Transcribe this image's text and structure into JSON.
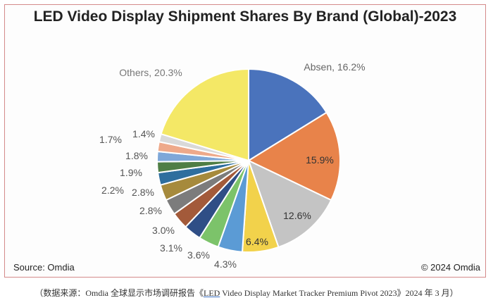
{
  "chart_data": {
    "type": "pie",
    "title": "LED Video Display Shipment Shares By Brand (Global)-2023",
    "slices": [
      {
        "label": "Absen, 16.2%",
        "value": 16.2,
        "color": "#4a73bc"
      },
      {
        "label": "15.9%",
        "value": 15.9,
        "color": "#e8834a"
      },
      {
        "label": "12.6%",
        "value": 12.6,
        "color": "#c4c4c4"
      },
      {
        "label": "6.4%",
        "value": 6.4,
        "color": "#f2d24b"
      },
      {
        "label": "4.3%",
        "value": 4.3,
        "color": "#5b9bd5"
      },
      {
        "label": "3.6%",
        "value": 3.6,
        "color": "#7cc36a"
      },
      {
        "label": "3.1%",
        "value": 3.1,
        "color": "#2f4e86"
      },
      {
        "label": "3.0%",
        "value": 3.0,
        "color": "#a35a3a"
      },
      {
        "label": "2.8%",
        "value": 2.8,
        "color": "#7c7c7c"
      },
      {
        "label": "2.8%",
        "value": 2.8,
        "color": "#a68a3c"
      },
      {
        "label": "2.2%",
        "value": 2.2,
        "color": "#2e6e9e"
      },
      {
        "label": "1.9%",
        "value": 1.9,
        "color": "#4f7e45"
      },
      {
        "label": "1.8%",
        "value": 1.8,
        "color": "#7ea7d8"
      },
      {
        "label": "1.7%",
        "value": 1.7,
        "color": "#eea98a"
      },
      {
        "label": "1.4%",
        "value": 1.4,
        "color": "#d9d9d9"
      },
      {
        "label": "Others, 20.3%",
        "value": 20.3,
        "color": "#f4e866"
      }
    ]
  },
  "footer": {
    "source": "Source: Omdia",
    "copyright": "© 2024 Omdia"
  },
  "caption": {
    "prefix": "（数据来源：Omdia 全球显示市场调研报告《",
    "link": "LED",
    "middle": " Video Display Market Tracker Premium Pivot 2023》2024 年 3 月）"
  }
}
